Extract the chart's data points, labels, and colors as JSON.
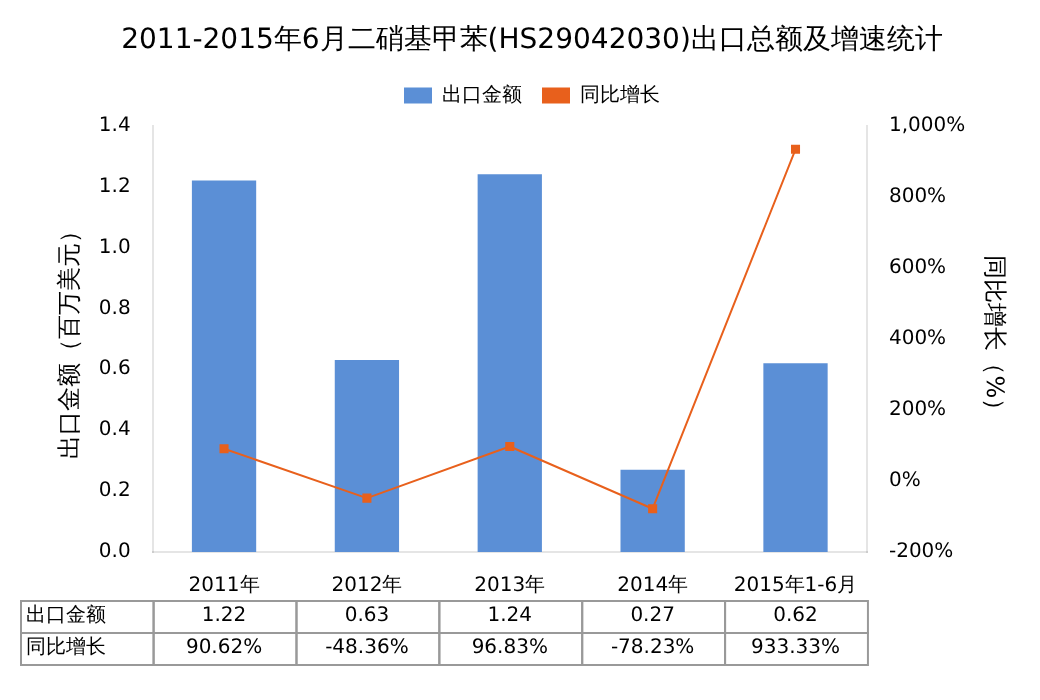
{
  "chart_data": {
    "type": "bar",
    "title": "2011-2015年6月二硝基甲苯(HS29042030)出口总额及增速统计",
    "categories": [
      "2011年",
      "2012年",
      "2013年",
      "2014年",
      "2015年1-6月"
    ],
    "series": [
      {
        "name": "出口金额",
        "color": "#5b8fd6",
        "values": [
          1.22,
          0.63,
          1.24,
          0.27,
          0.62
        ],
        "value_labels": [
          "1.22",
          "0.63",
          "1.24",
          "0.27",
          "0.62"
        ]
      },
      {
        "name": "同比增长",
        "type": "line",
        "axis": "y2",
        "color": "#e8601c",
        "marker": "square",
        "values": [
          90.62,
          -48.36,
          96.83,
          -78.23,
          933.33
        ],
        "value_labels": [
          "90.62%",
          "-48.36%",
          "96.83%",
          "-78.23%",
          "933.33%"
        ]
      }
    ],
    "ylabel": "出口金额（百万美元）",
    "y2label": "同比增长（%）",
    "ylim": [
      0,
      1.4
    ],
    "yticks": [
      {
        "value": 0,
        "label": "0.0"
      },
      0.2,
      0.4,
      0.6,
      0.8,
      {
        "value": 1,
        "label": "1.0"
      },
      1.2,
      1.4
    ],
    "y2lim": [
      -200,
      1000
    ],
    "y2ticks": [
      {
        "value": -200,
        "label": "-200%"
      },
      {
        "value": 0,
        "label": "0%"
      },
      {
        "value": 200,
        "label": "200%"
      },
      {
        "value": 400,
        "label": "400%"
      },
      {
        "value": 600,
        "label": "600%"
      },
      {
        "value": 800,
        "label": "800%"
      },
      {
        "value": 1000,
        "label": "1,000%"
      }
    ],
    "grid": false,
    "legend": "top"
  }
}
